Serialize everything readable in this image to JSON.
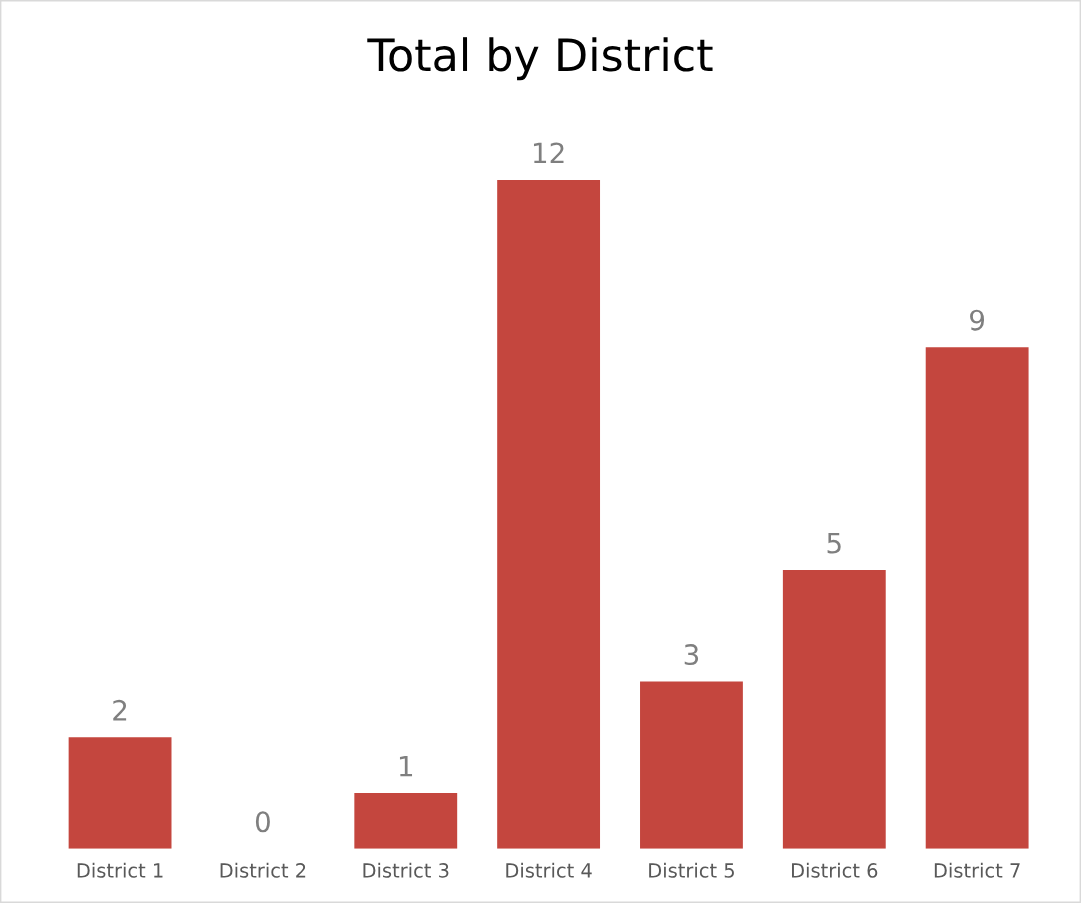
{
  "chart_data": {
    "type": "bar",
    "title": "Total by District",
    "categories": [
      "District 1",
      "District 2",
      "District 3",
      "District 4",
      "District 5",
      "District 6",
      "District 7"
    ],
    "values": [
      2,
      0,
      1,
      12,
      3,
      5,
      9
    ],
    "color": "#c4463e",
    "data_labels": true,
    "grid": false,
    "legend": false
  }
}
